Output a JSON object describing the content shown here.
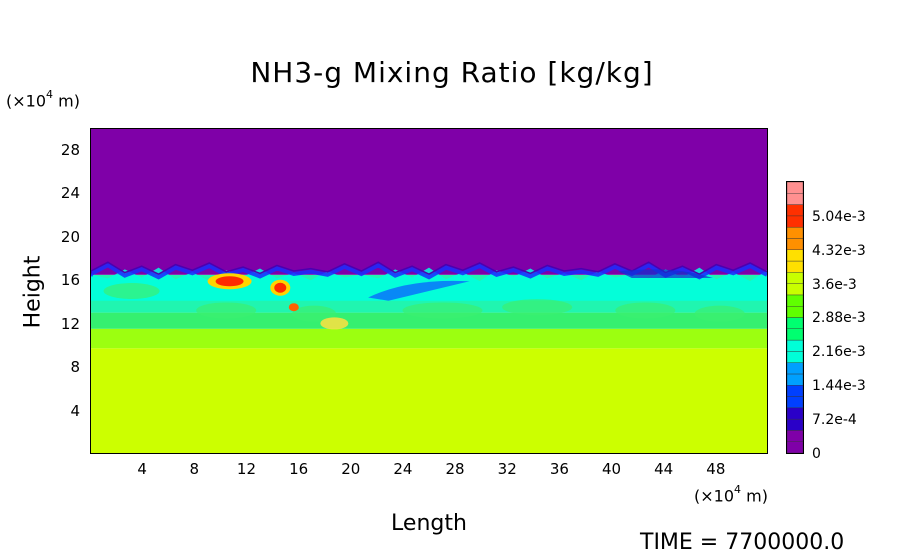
{
  "chart_data": {
    "type": "heatmap",
    "title": "NH3-g Mixing Ratio [kg/kg]",
    "xlabel": "Length",
    "ylabel": "Height",
    "x_unit_prefix": "(×10",
    "x_unit_exp": "4",
    "x_unit_suffix": " m)",
    "y_unit_prefix": "(×10",
    "y_unit_exp": "4",
    "y_unit_suffix": " m)",
    "xlim": [
      0,
      52
    ],
    "ylim": [
      0,
      30
    ],
    "x_ticks": [
      "4",
      "8",
      "12",
      "16",
      "20",
      "24",
      "28",
      "32",
      "36",
      "40",
      "44",
      "48"
    ],
    "y_ticks": [
      "4",
      "8",
      "12",
      "16",
      "20",
      "24",
      "28"
    ],
    "colorbar": {
      "range": [
        0,
        0.0058
      ],
      "labels": [
        "0",
        "7.2e-4",
        "1.44e-3",
        "2.16e-3",
        "2.88e-3",
        "3.6e-3",
        "4.32e-3",
        "5.04e-3"
      ],
      "colors": [
        "#7f00a8",
        "#2a00c8",
        "#0040ff",
        "#00a0ff",
        "#00ffd8",
        "#00ff70",
        "#60ff00",
        "#c8ff00",
        "#ffe000",
        "#ff9000",
        "#ff3000",
        "#ff9090"
      ]
    },
    "layers": [
      {
        "from_height": 0,
        "to_height": 9.7,
        "value": 0.0033,
        "color": "#ccff00"
      },
      {
        "from_height": 9.7,
        "to_height": 11.5,
        "value": 0.003,
        "color": "#9cff10"
      },
      {
        "from_height": 11.5,
        "to_height": 13,
        "value": 0.0028,
        "color": "#35f070"
      },
      {
        "from_height": 13,
        "to_height": 16.5,
        "value": 0.0023,
        "color": "#20f5b0"
      },
      {
        "from_height": 16.5,
        "to_height": 30,
        "value": 0,
        "color": "#7f00a8"
      }
    ],
    "annotation": "TIME = 7700000.0"
  }
}
